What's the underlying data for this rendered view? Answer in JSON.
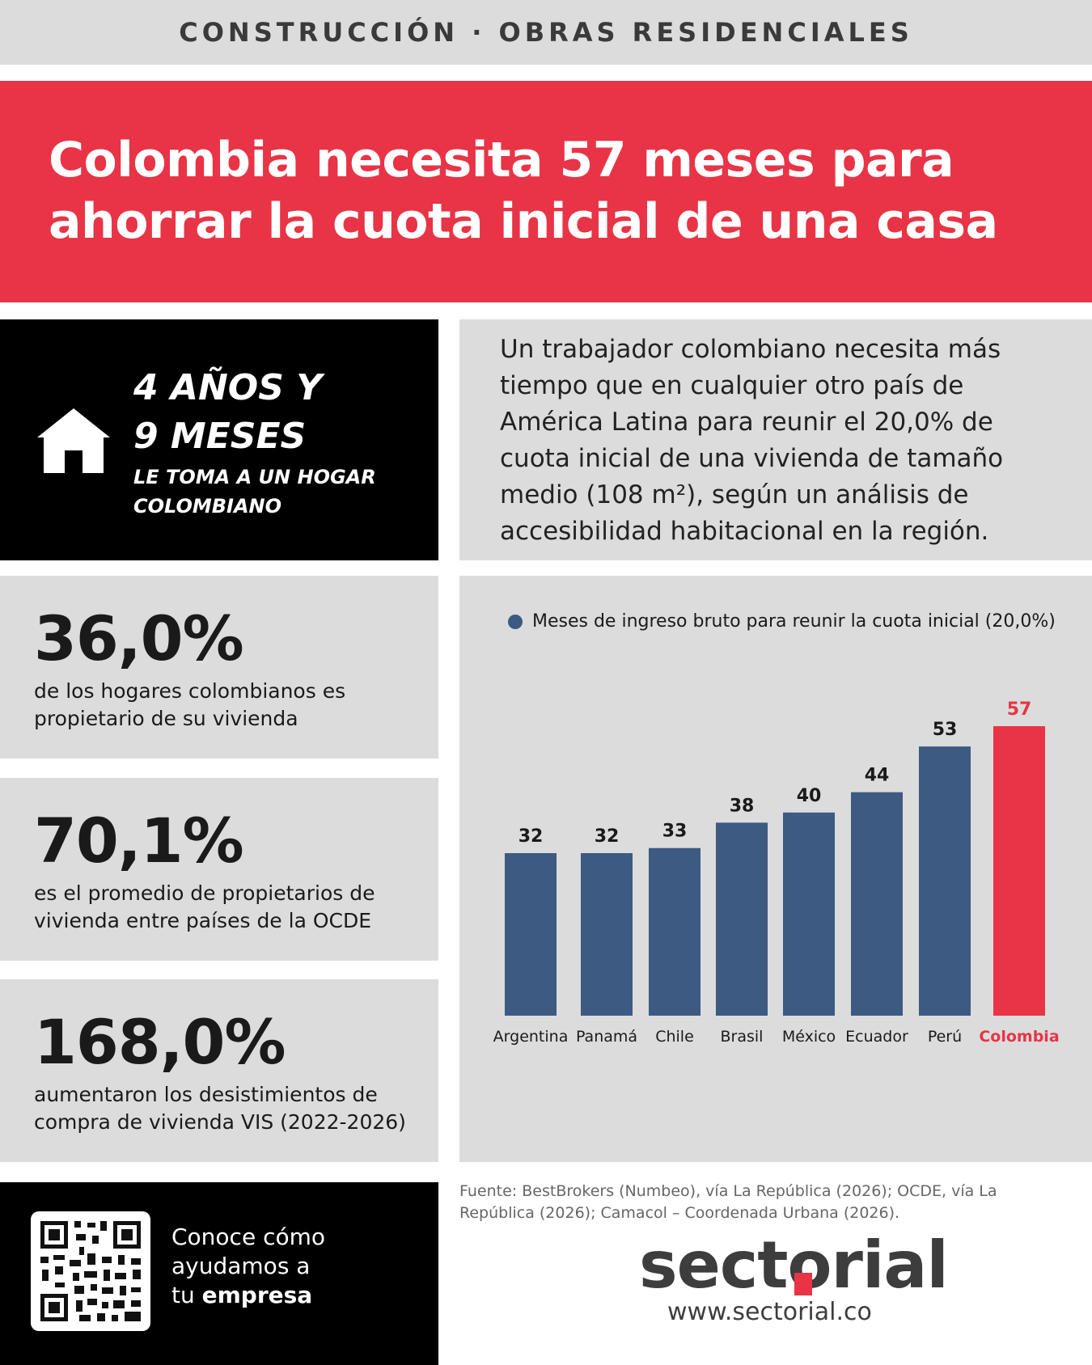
{
  "header": {
    "category": "CONSTRUCCIÓN · OBRAS RESIDENCIALES"
  },
  "hero": {
    "title": "Colombia necesita 57 meses para ahorrar la cuota inicial de una casa"
  },
  "highlight": {
    "icon": "house-icon",
    "line1": "4 AÑOS Y",
    "line2": "9 MESES",
    "sub1": "LE TOMA A UN HOGAR",
    "sub2": "COLOMBIANO"
  },
  "intro": {
    "text": "Un trabajador colombiano necesita más tiempo que en cualquier otro país de América Latina para reunir el 20,0% de cuota inicial de una vivienda de tamaño medio (108 m²), según un análisis de accesibilidad habitacional en la región."
  },
  "stats": [
    {
      "value": "36,0%",
      "desc": "de los hogares colombianos es propietario de su vivienda"
    },
    {
      "value": "70,1%",
      "desc": "es el promedio de propietarios de vivienda entre países de la OCDE"
    },
    {
      "value": "168,0%",
      "desc": "aumentaron los desistimientos de compra de vivienda VIS (2022-2026)"
    }
  ],
  "chart_data": {
    "type": "bar",
    "legend": "Meses de ingreso bruto para reunir la cuota inicial (20,0%)",
    "categories": [
      "Argentina",
      "Panamá",
      "Chile",
      "Brasil",
      "México",
      "Ecuador",
      "Perú",
      "Colombia"
    ],
    "values": [
      32,
      32,
      33,
      38,
      40,
      44,
      53,
      57
    ],
    "highlight_category": "Colombia",
    "ylim": [
      0,
      57
    ],
    "grid": false,
    "colors": {
      "bar": "#3c5a82",
      "highlight": "#e83446",
      "label": "#1a1a1a"
    }
  },
  "cta": {
    "qr_icon": "qr-code-icon",
    "line1": "Conoce cómo",
    "line2": "ayudamos a",
    "line3_prefix": "tu ",
    "line3_bold": "empresa"
  },
  "source": {
    "text": "Fuente: BestBrokers (Numbeo), vía La República (2026); OCDE, vía La República (2026); Camacol – Coordenada Urbana (2026)."
  },
  "brand": {
    "logo": "sectorial",
    "website": "www.sectorial.co"
  }
}
